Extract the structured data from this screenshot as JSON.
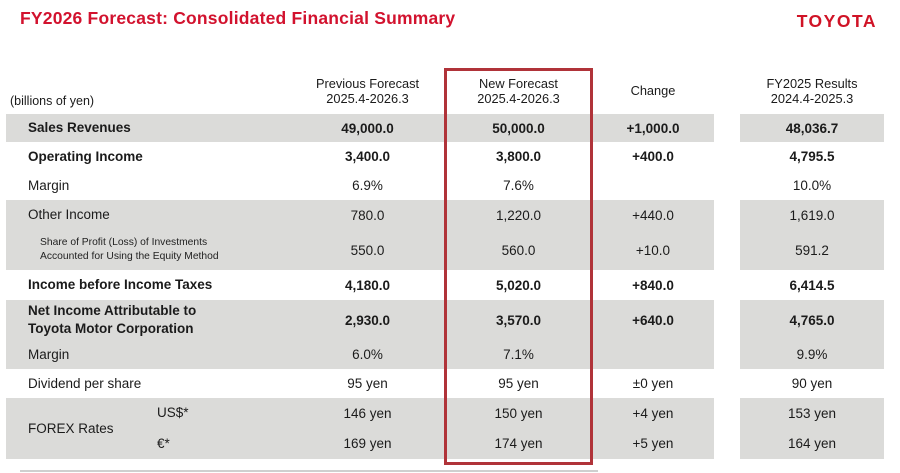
{
  "slide": {
    "title": "FY2026 Forecast: Consolidated Financial Summary",
    "logo_text": "TOYOTA"
  },
  "table": {
    "unit_label": "(billions of yen)",
    "col_headers": {
      "previous": "Previous Forecast\n2025.4-2026.3",
      "new": "New Forecast\n2025.4-2026.3",
      "change": "Change",
      "fy2025": "FY2025 Results\n2024.4-2025.3"
    },
    "forex_group_label": "FOREX Rates",
    "rows": [
      {
        "label": "Sales Revenues",
        "values": [
          "49,000.0",
          "50,000.0",
          "+1,000.0",
          "48,036.7"
        ]
      },
      {
        "label": "Operating Income",
        "values": [
          "3,400.0",
          "3,800.0",
          "+400.0",
          "4,795.5"
        ]
      },
      {
        "label": "Margin",
        "values": [
          "6.9%",
          "7.6%",
          "",
          "10.0%"
        ]
      },
      {
        "label": "Other Income",
        "values": [
          "780.0",
          "1,220.0",
          "+440.0",
          "1,619.0"
        ]
      },
      {
        "label": "Share of Profit (Loss) of Investments\nAccounted for Using the Equity Method",
        "values": [
          "550.0",
          "560.0",
          "+10.0",
          "591.2"
        ]
      },
      {
        "label": "Income before Income Taxes",
        "values": [
          "4,180.0",
          "5,020.0",
          "+840.0",
          "6,414.5"
        ]
      },
      {
        "label": "Net Income Attributable to\nToyota Motor Corporation",
        "values": [
          "2,930.0",
          "3,570.0",
          "+640.0",
          "4,765.0"
        ]
      },
      {
        "label": "Margin",
        "values": [
          "6.0%",
          "7.1%",
          "",
          "9.9%"
        ]
      },
      {
        "label": "Dividend per share",
        "values": [
          "95 yen",
          "95 yen",
          "±0 yen",
          "90 yen"
        ]
      },
      {
        "sublabel": "US$*",
        "values": [
          "146 yen",
          "150 yen",
          "+4 yen",
          "153 yen"
        ]
      },
      {
        "sublabel": "€*",
        "values": [
          "169 yen",
          "174 yen",
          "+5 yen",
          "164 yen"
        ]
      }
    ]
  },
  "colors": {
    "accent_red": "#d2122e",
    "highlight_box_red": "#b03339",
    "row_shade_gray": "#dbdbd9",
    "text": "#1b1b1b"
  }
}
